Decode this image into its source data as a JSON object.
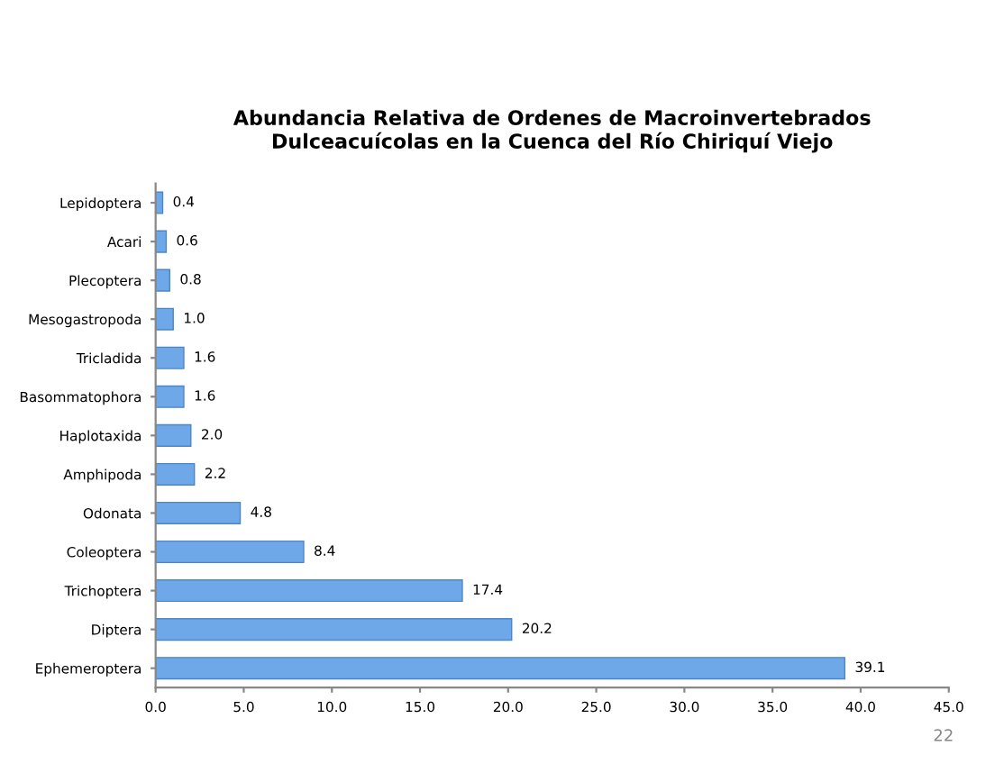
{
  "chart_data": {
    "type": "bar",
    "orientation": "horizontal",
    "title": "Abundancia Relativa de Ordenes de Macroinvertebrados\nDulceacuícolas en la Cuenca del Río Chiriquí Viejo",
    "categories": [
      "Lepidoptera",
      "Acari",
      "Plecoptera",
      "Mesogastropoda",
      "Tricladida",
      "Basommatophora",
      "Haplotaxida",
      "Amphipoda",
      "Odonata",
      "Coleoptera",
      "Trichoptera",
      "Diptera",
      "Ephemeroptera"
    ],
    "values": [
      0.4,
      0.6,
      0.8,
      1.0,
      1.6,
      1.6,
      2.0,
      2.2,
      4.8,
      8.4,
      17.4,
      20.2,
      39.1
    ],
    "value_labels": [
      "0.4",
      "0.6",
      "0.8",
      "1.0",
      "1.6",
      "1.6",
      "2.0",
      "2.2",
      "4.8",
      "8.4",
      "17.4",
      "20.2",
      "39.1"
    ],
    "color": "#6fa8e8",
    "xlim": [
      0,
      45
    ],
    "xticks": [
      {
        "value": 0,
        "label": "0.0"
      },
      {
        "value": 5,
        "label": "5.0"
      },
      {
        "value": 10,
        "label": "10.0"
      },
      {
        "value": 15,
        "label": "15.0"
      },
      {
        "value": 20,
        "label": "20.0"
      },
      {
        "value": 25,
        "label": "25.0"
      },
      {
        "value": 30,
        "label": "30.0"
      },
      {
        "value": 35,
        "label": "35.0"
      },
      {
        "value": 40,
        "label": "40.0"
      },
      {
        "value": 45,
        "label": "45.0"
      }
    ],
    "grid": false,
    "annotations": [
      "22"
    ]
  }
}
